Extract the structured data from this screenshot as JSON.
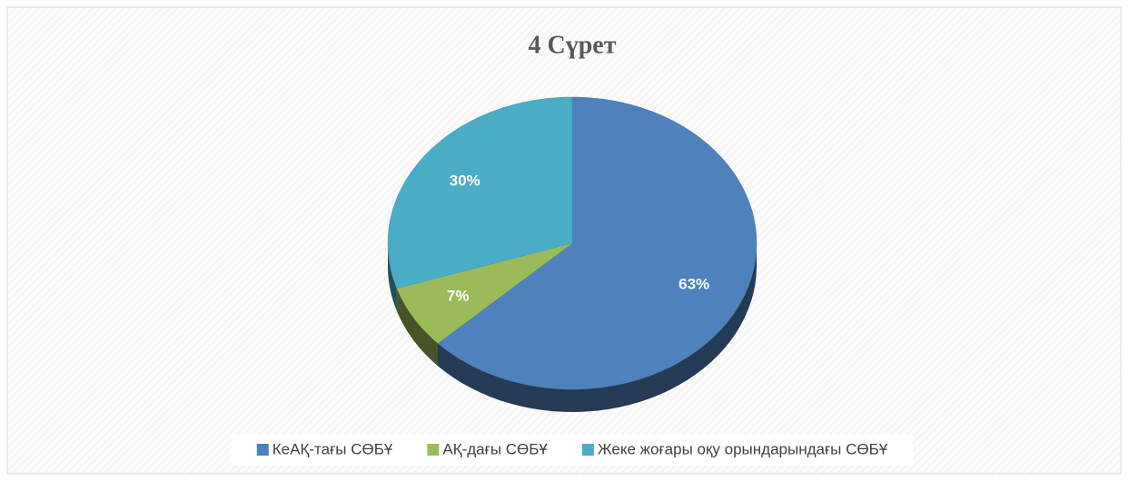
{
  "chart_data": {
    "type": "pie",
    "title": "4 Сүрет",
    "categories": [
      "КеАҚ-тағы СӨБҰ",
      "АҚ-дағы СӨБҰ",
      "Жеке жоғары оқу орындарындағы СӨБҰ"
    ],
    "values": [
      63,
      7,
      30
    ],
    "value_labels": [
      "63%",
      "7%",
      "30%"
    ],
    "colors": [
      "#4f81bd",
      "#9bbb59",
      "#4bacc6"
    ],
    "legend": "bottom"
  }
}
